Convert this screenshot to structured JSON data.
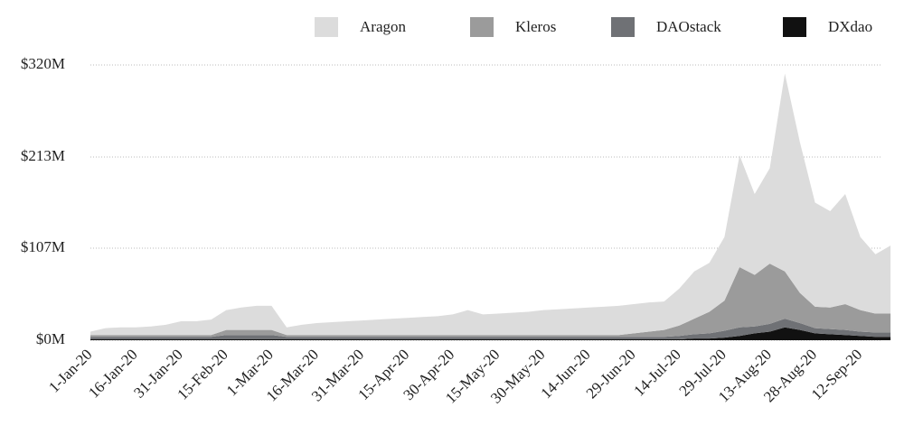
{
  "chart_data": {
    "type": "stacked_area",
    "categories": [
      "1-Jan-20",
      null,
      null,
      "16-Jan-20",
      null,
      null,
      "31-Jan-20",
      null,
      null,
      "15-Feb-20",
      null,
      null,
      "1-Mar-20",
      null,
      null,
      "16-Mar-20",
      null,
      null,
      "31-Mar-20",
      null,
      null,
      "15-Apr-20",
      null,
      null,
      "30-Apr-20",
      null,
      null,
      "15-May-20",
      null,
      null,
      "30-May-20",
      null,
      null,
      "14-Jun-20",
      null,
      null,
      "29-Jun-20",
      null,
      null,
      "14-Jul-20",
      null,
      null,
      "29-Jul-20",
      null,
      null,
      "13-Aug-20",
      null,
      null,
      "28-Aug-20",
      null,
      null,
      "12-Sep-20",
      null,
      null
    ],
    "series": [
      {
        "name": "Aragon",
        "color": "#dcdcdc",
        "values": [
          4,
          8,
          9,
          9,
          10,
          12,
          16,
          16,
          18,
          23,
          26,
          28,
          28,
          9,
          12,
          14,
          15,
          16,
          17,
          18,
          19,
          20,
          21,
          22,
          24,
          29,
          24,
          25,
          26,
          27,
          29,
          30,
          31,
          32,
          33,
          34,
          34,
          34,
          33,
          43,
          55,
          57,
          74,
          130,
          94,
          111,
          230,
          175,
          121,
          112,
          128,
          85,
          69,
          79
        ]
      },
      {
        "name": "Kleros",
        "color": "#9b9b9b",
        "values": [
          2,
          2,
          2,
          2,
          2,
          2,
          2,
          2,
          2,
          6,
          6,
          6,
          6,
          2,
          2,
          2,
          2,
          2,
          2,
          2,
          2,
          2,
          2,
          2,
          2,
          2,
          2,
          2,
          2,
          2,
          2,
          2,
          2,
          2,
          2,
          2,
          4,
          6,
          8,
          12,
          18,
          25,
          35,
          70,
          60,
          70,
          55,
          35,
          25,
          25,
          30,
          25,
          22,
          22
        ]
      },
      {
        "name": "DAOstack",
        "color": "#6f7175",
        "values": [
          3,
          3,
          3,
          3,
          3,
          3,
          3,
          3,
          3,
          5,
          5,
          5,
          5,
          3,
          3,
          3,
          3,
          3,
          3,
          3,
          3,
          3,
          3,
          3,
          3,
          3,
          3,
          3,
          3,
          3,
          3,
          3,
          3,
          3,
          3,
          3,
          3,
          3,
          3,
          4,
          5,
          6,
          8,
          10,
          8,
          9,
          10,
          8,
          6,
          6,
          6,
          5,
          5,
          5
        ]
      },
      {
        "name": "DXdao",
        "color": "#111111",
        "values": [
          1,
          1,
          1,
          1,
          1,
          1,
          1,
          1,
          1,
          1,
          1,
          1,
          1,
          1,
          1,
          1,
          1,
          1,
          1,
          1,
          1,
          1,
          1,
          1,
          1,
          1,
          1,
          1,
          1,
          1,
          1,
          1,
          1,
          1,
          1,
          1,
          1,
          1,
          1,
          1,
          2,
          2,
          3,
          5,
          8,
          10,
          15,
          12,
          8,
          7,
          6,
          5,
          4,
          4
        ]
      }
    ],
    "ylim": [
      0,
      320
    ],
    "yticks": [
      {
        "value": 0,
        "label": "$0M"
      },
      {
        "value": 107,
        "label": "$107M"
      },
      {
        "value": 213,
        "label": "$213M"
      },
      {
        "value": 320,
        "label": "$320M"
      }
    ],
    "grid": true
  }
}
